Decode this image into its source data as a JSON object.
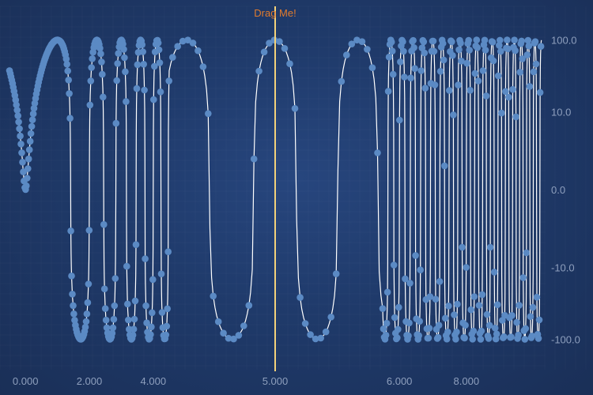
{
  "chart_data": {
    "type": "scatter",
    "title": "",
    "xlabel": "",
    "ylabel": "",
    "series": [
      {
        "values_function": "y = 100*sin(0.5*pi*x^2) on a symmetric log scale",
        "x_range": [
          -0.5,
          10.25
        ]
      }
    ],
    "x_axis": {
      "type": "piecewise-fisheye",
      "ticks": [
        "0.000",
        "2.000",
        "4.000",
        "5.000",
        "6.000",
        "8.000"
      ],
      "range": [
        -0.5,
        10.25
      ],
      "position": "bottom"
    },
    "y_axis": {
      "type": "symlog",
      "ticks": [
        "100.0",
        "10.0",
        "0.0",
        "-10.0",
        "-100.0"
      ],
      "range": [
        -200,
        200
      ],
      "position": "right"
    },
    "annotation": {
      "label": "Drag Me!",
      "x": 5.0
    },
    "grid": true,
    "legend": "none"
  },
  "colors": {
    "series_fill": "#5b8ac4",
    "series_line": "#ffffff",
    "annotation_line": "#f3d27a",
    "annotation_text": "#e07b2e",
    "tick_text": "#8e9fbd"
  }
}
